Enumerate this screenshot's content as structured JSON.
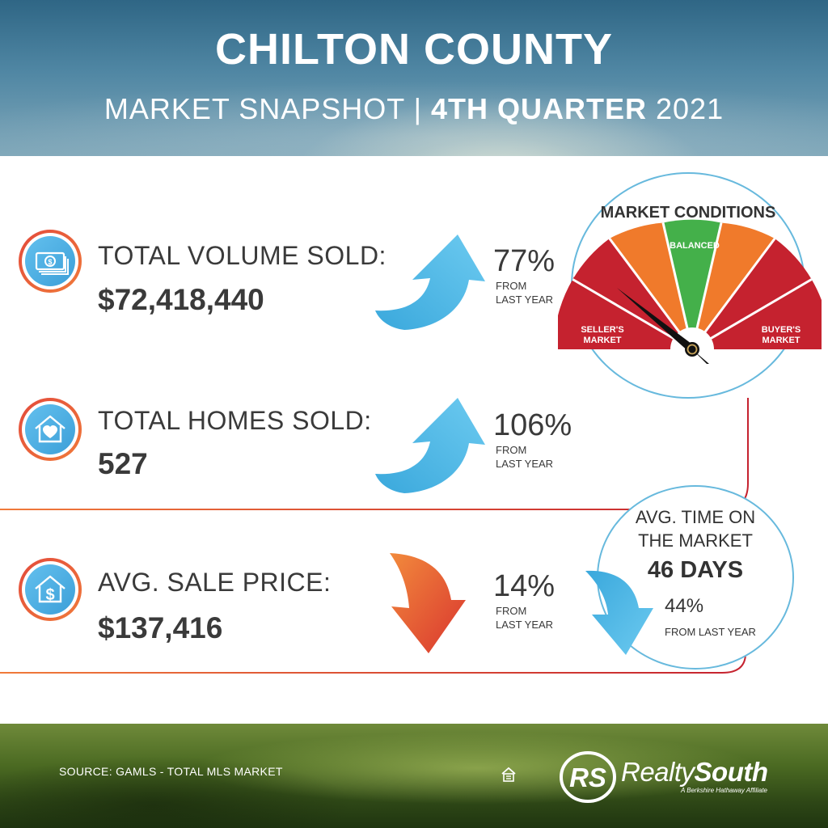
{
  "header": {
    "title": "CHILTON COUNTY",
    "subtitle_prefix": "MARKET SNAPSHOT | ",
    "subtitle_bold": "4TH QUARTER",
    "subtitle_year": " 2021"
  },
  "stats": [
    {
      "label": "TOTAL VOLUME SOLD:",
      "value": "$72,418,440",
      "change": "77%",
      "direction": "up",
      "from_line1": "FROM",
      "from_line2": "LAST YEAR",
      "icon": "money-icon"
    },
    {
      "label": "TOTAL HOMES SOLD:",
      "value": "527",
      "change": "106%",
      "direction": "up",
      "from_line1": "FROM",
      "from_line2": "LAST YEAR",
      "icon": "house-heart-icon"
    },
    {
      "label": "AVG. SALE PRICE:",
      "value": "$137,416",
      "change": "14%",
      "direction": "down",
      "from_line1": "FROM",
      "from_line2": "LAST YEAR",
      "icon": "house-dollar-icon"
    }
  ],
  "gauge": {
    "title": "MARKET CONDITIONS",
    "balanced": "BALANCED",
    "seller_line1": "SELLER'S",
    "seller_line2": "MARKET",
    "buyer_line1": "BUYER'S",
    "buyer_line2": "MARKET",
    "needle_position": "seller's market",
    "colors": {
      "red": "#c5222f",
      "orange": "#f07a2b",
      "green": "#44b04a"
    }
  },
  "time_on_market": {
    "title_line1": "AVG. TIME ON",
    "title_line2": "THE MARKET",
    "days": "46 DAYS",
    "change": "44%",
    "from": "FROM LAST YEAR",
    "direction": "down"
  },
  "footer": {
    "source": "SOURCE: GAMLS - TOTAL MLS MARKET",
    "brand_light": "Realty",
    "brand_bold": "South",
    "tagline": "A Berkshire Hathaway Affiliate",
    "logo_letters": "RS"
  },
  "colors": {
    "accent_blue": "#4fb3e3",
    "accent_orange": "#f07a3a",
    "accent_red": "#d9352f",
    "text_dark": "#3a3a3a"
  }
}
